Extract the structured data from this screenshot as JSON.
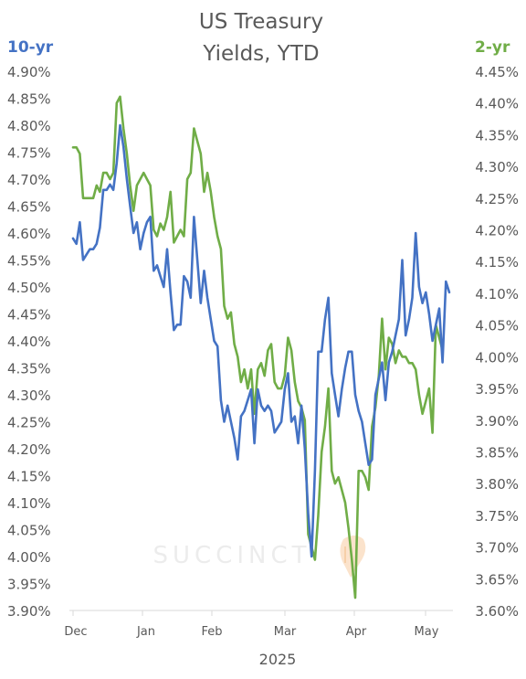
{
  "chart_data": {
    "type": "line",
    "title": [
      "US Treasury",
      "Yields, YTD"
    ],
    "xlabel": "2025",
    "watermark": "SUCCINCT",
    "x_ticks": [
      "Dec",
      "Jan",
      "Feb",
      "Mar",
      "Apr",
      "May"
    ],
    "left_axis": {
      "label": "10-yr",
      "color": "#4472c4",
      "range": [
        3.9,
        4.9
      ],
      "ticks": [
        "4.90%",
        "4.85%",
        "4.80%",
        "4.75%",
        "4.70%",
        "4.65%",
        "4.60%",
        "4.55%",
        "4.50%",
        "4.45%",
        "4.40%",
        "4.35%",
        "4.30%",
        "4.25%",
        "4.20%",
        "4.15%",
        "4.10%",
        "4.05%",
        "4.00%",
        "3.95%",
        "3.90%"
      ]
    },
    "right_axis": {
      "label": "2-yr",
      "color": "#70ad47",
      "range": [
        3.6,
        4.45
      ],
      "ticks": [
        "4.45%",
        "4.40%",
        "4.35%",
        "4.30%",
        "4.25%",
        "4.20%",
        "4.15%",
        "4.10%",
        "4.05%",
        "4.00%",
        "3.95%",
        "3.90%",
        "3.85%",
        "3.80%",
        "3.75%",
        "3.70%",
        "3.65%",
        "3.60%"
      ]
    },
    "series": [
      {
        "name": "10-yr",
        "axis": "left",
        "color": "#4472c4",
        "values": [
          [
            0,
            4.59
          ],
          [
            1,
            4.58
          ],
          [
            2,
            4.62
          ],
          [
            3,
            4.55
          ],
          [
            4,
            4.56
          ],
          [
            5,
            4.57
          ],
          [
            6,
            4.57
          ],
          [
            7,
            4.58
          ],
          [
            8,
            4.61
          ],
          [
            9,
            4.68
          ],
          [
            10,
            4.68
          ],
          [
            11,
            4.69
          ],
          [
            12,
            4.68
          ],
          [
            13,
            4.73
          ],
          [
            14,
            4.8
          ],
          [
            15,
            4.76
          ],
          [
            16,
            4.7
          ],
          [
            17,
            4.65
          ],
          [
            18,
            4.6
          ],
          [
            19,
            4.62
          ],
          [
            20,
            4.57
          ],
          [
            21,
            4.6
          ],
          [
            22,
            4.62
          ],
          [
            23,
            4.63
          ],
          [
            24,
            4.53
          ],
          [
            25,
            4.54
          ],
          [
            26,
            4.52
          ],
          [
            27,
            4.5
          ],
          [
            28,
            4.57
          ],
          [
            29,
            4.49
          ],
          [
            30,
            4.42
          ],
          [
            31,
            4.43
          ],
          [
            32,
            4.43
          ],
          [
            33,
            4.52
          ],
          [
            34,
            4.51
          ],
          [
            35,
            4.48
          ],
          [
            36,
            4.63
          ],
          [
            37,
            4.55
          ],
          [
            38,
            4.47
          ],
          [
            39,
            4.53
          ],
          [
            40,
            4.48
          ],
          [
            41,
            4.44
          ],
          [
            42,
            4.4
          ],
          [
            43,
            4.39
          ],
          [
            44,
            4.29
          ],
          [
            45,
            4.25
          ],
          [
            46,
            4.28
          ],
          [
            47,
            4.25
          ],
          [
            48,
            4.22
          ],
          [
            49,
            4.18
          ],
          [
            50,
            4.26
          ],
          [
            51,
            4.27
          ],
          [
            52,
            4.29
          ],
          [
            53,
            4.31
          ],
          [
            54,
            4.21
          ],
          [
            55,
            4.31
          ],
          [
            56,
            4.28
          ],
          [
            57,
            4.27
          ],
          [
            58,
            4.28
          ],
          [
            59,
            4.27
          ],
          [
            60,
            4.23
          ],
          [
            61,
            4.24
          ],
          [
            62,
            4.25
          ],
          [
            63,
            4.31
          ],
          [
            64,
            4.34
          ],
          [
            65,
            4.25
          ],
          [
            66,
            4.26
          ],
          [
            67,
            4.21
          ],
          [
            68,
            4.28
          ],
          [
            69,
            4.2
          ],
          [
            70,
            4.08
          ],
          [
            71,
            4.0
          ],
          [
            72,
            4.16
          ],
          [
            73,
            4.38
          ],
          [
            74,
            4.38
          ],
          [
            75,
            4.44
          ],
          [
            76,
            4.48
          ],
          [
            77,
            4.34
          ],
          [
            78,
            4.3
          ],
          [
            79,
            4.26
          ],
          [
            80,
            4.31
          ],
          [
            81,
            4.35
          ],
          [
            82,
            4.38
          ],
          [
            83,
            4.38
          ],
          [
            84,
            4.3
          ],
          [
            85,
            4.27
          ],
          [
            86,
            4.25
          ],
          [
            87,
            4.21
          ],
          [
            88,
            4.17
          ],
          [
            89,
            4.18
          ],
          [
            90,
            4.3
          ],
          [
            91,
            4.33
          ],
          [
            92,
            4.36
          ],
          [
            93,
            4.29
          ],
          [
            94,
            4.36
          ],
          [
            95,
            4.38
          ],
          [
            96,
            4.41
          ],
          [
            97,
            4.44
          ],
          [
            98,
            4.55
          ],
          [
            99,
            4.41
          ],
          [
            100,
            4.44
          ],
          [
            101,
            4.48
          ],
          [
            102,
            4.6
          ],
          [
            103,
            4.5
          ],
          [
            104,
            4.47
          ],
          [
            105,
            4.49
          ],
          [
            106,
            4.45
          ],
          [
            107,
            4.4
          ],
          [
            108,
            4.43
          ],
          [
            109,
            4.46
          ],
          [
            110,
            4.36
          ],
          [
            111,
            4.51
          ],
          [
            112,
            4.49
          ]
        ]
      },
      {
        "name": "2-yr",
        "axis": "right",
        "color": "#70ad47",
        "values": [
          [
            0,
            4.33
          ],
          [
            1,
            4.33
          ],
          [
            2,
            4.32
          ],
          [
            3,
            4.25
          ],
          [
            4,
            4.25
          ],
          [
            5,
            4.25
          ],
          [
            6,
            4.25
          ],
          [
            7,
            4.27
          ],
          [
            8,
            4.26
          ],
          [
            9,
            4.29
          ],
          [
            10,
            4.29
          ],
          [
            11,
            4.28
          ],
          [
            12,
            4.29
          ],
          [
            13,
            4.4
          ],
          [
            14,
            4.41
          ],
          [
            15,
            4.36
          ],
          [
            16,
            4.32
          ],
          [
            17,
            4.27
          ],
          [
            18,
            4.23
          ],
          [
            19,
            4.27
          ],
          [
            20,
            4.28
          ],
          [
            21,
            4.29
          ],
          [
            22,
            4.28
          ],
          [
            23,
            4.27
          ],
          [
            24,
            4.2
          ],
          [
            25,
            4.19
          ],
          [
            26,
            4.21
          ],
          [
            27,
            4.2
          ],
          [
            28,
            4.22
          ],
          [
            29,
            4.26
          ],
          [
            30,
            4.18
          ],
          [
            31,
            4.19
          ],
          [
            32,
            4.2
          ],
          [
            33,
            4.19
          ],
          [
            34,
            4.28
          ],
          [
            35,
            4.29
          ],
          [
            36,
            4.36
          ],
          [
            37,
            4.34
          ],
          [
            38,
            4.32
          ],
          [
            39,
            4.26
          ],
          [
            40,
            4.29
          ],
          [
            41,
            4.26
          ],
          [
            42,
            4.22
          ],
          [
            43,
            4.19
          ],
          [
            44,
            4.17
          ],
          [
            45,
            4.08
          ],
          [
            46,
            4.06
          ],
          [
            47,
            4.07
          ],
          [
            48,
            4.02
          ],
          [
            49,
            4.0
          ],
          [
            50,
            3.96
          ],
          [
            51,
            3.98
          ],
          [
            52,
            3.95
          ],
          [
            53,
            3.98
          ],
          [
            54,
            3.91
          ],
          [
            55,
            3.98
          ],
          [
            56,
            3.99
          ],
          [
            57,
            3.97
          ],
          [
            58,
            4.01
          ],
          [
            59,
            4.02
          ],
          [
            60,
            3.96
          ],
          [
            61,
            3.95
          ],
          [
            62,
            3.95
          ],
          [
            63,
            3.97
          ],
          [
            64,
            4.03
          ],
          [
            65,
            4.01
          ],
          [
            66,
            3.96
          ],
          [
            67,
            3.93
          ],
          [
            68,
            3.92
          ],
          [
            69,
            3.9
          ],
          [
            70,
            3.72
          ],
          [
            71,
            3.7
          ],
          [
            72,
            3.68
          ],
          [
            73,
            3.75
          ],
          [
            74,
            3.85
          ],
          [
            75,
            3.89
          ],
          [
            76,
            3.95
          ],
          [
            77,
            3.82
          ],
          [
            78,
            3.8
          ],
          [
            79,
            3.81
          ],
          [
            80,
            3.79
          ],
          [
            81,
            3.77
          ],
          [
            82,
            3.73
          ],
          [
            83,
            3.68
          ],
          [
            84,
            3.62
          ],
          [
            85,
            3.82
          ],
          [
            86,
            3.82
          ],
          [
            87,
            3.81
          ],
          [
            88,
            3.79
          ],
          [
            89,
            3.89
          ],
          [
            90,
            3.92
          ],
          [
            91,
            3.97
          ],
          [
            92,
            4.06
          ],
          [
            93,
            3.98
          ],
          [
            94,
            4.03
          ],
          [
            95,
            4.02
          ],
          [
            96,
            3.99
          ],
          [
            97,
            4.01
          ],
          [
            98,
            4.0
          ],
          [
            99,
            4.0
          ],
          [
            100,
            3.99
          ],
          [
            101,
            3.99
          ],
          [
            102,
            3.98
          ],
          [
            103,
            3.94
          ],
          [
            104,
            3.91
          ],
          [
            105,
            3.93
          ],
          [
            106,
            3.95
          ],
          [
            107,
            3.88
          ],
          [
            108,
            4.05
          ],
          [
            109,
            4.03
          ],
          [
            110,
            4.01
          ]
        ]
      }
    ]
  }
}
